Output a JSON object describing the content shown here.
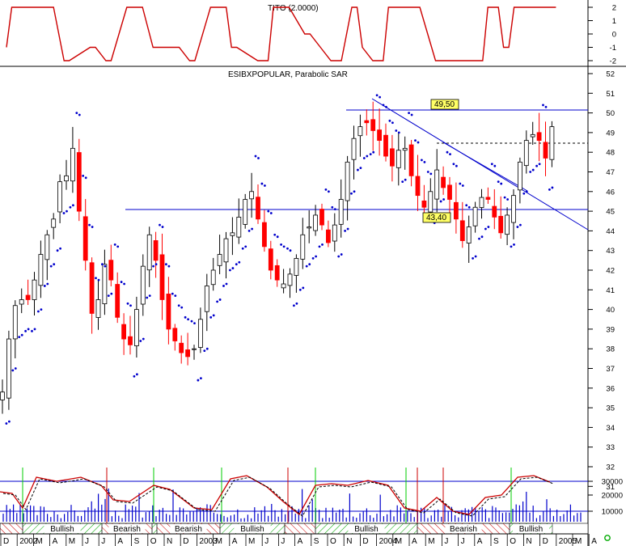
{
  "colors": {
    "up": "#000000",
    "down": "#ff0000",
    "sar": "#0000cc",
    "indicator": "#cc0000",
    "line": "#0000cc",
    "volume": "#0000cc",
    "signal": "#00cc00",
    "band_bull": "#00aa00",
    "band_bear": "#cc0000"
  },
  "chart_data": [
    {
      "type": "line",
      "title": "TITO (2.0000)",
      "ylim": [
        -2,
        2
      ],
      "yticks": [
        "2",
        "1",
        "0",
        "-1",
        "-2"
      ],
      "series": [
        {
          "x": [
            0,
            1,
            3,
            6,
            9,
            11,
            12,
            16,
            17,
            19,
            20,
            23,
            26,
            28,
            29,
            33,
            35,
            36,
            39,
            42,
            43,
            44,
            48,
            50,
            51,
            54,
            57,
            58,
            60,
            62,
            64,
            66,
            67,
            68,
            70,
            72,
            73,
            76,
            79,
            82,
            83,
            86,
            89,
            91,
            92,
            93,
            94,
            95,
            96,
            97,
            100,
            101,
            105
          ],
          "y": [
            -1,
            2,
            2,
            2,
            2,
            -2,
            -2,
            -1,
            -1,
            -2,
            -2,
            2,
            2,
            -1,
            -1,
            -1,
            -2,
            -2,
            2,
            2,
            -1,
            -1,
            -2,
            -2,
            2,
            2,
            0,
            0,
            -1,
            -2,
            -2,
            2,
            2,
            -1,
            -2,
            -2,
            2,
            2,
            2,
            -2,
            -2,
            -2,
            -2,
            -2,
            2,
            2,
            2,
            -1,
            -1,
            2,
            2,
            2,
            2
          ]
        }
      ]
    },
    {
      "type": "candlestick",
      "title": "ESIBXPOPULAR, Parabolic SAR",
      "ylim": [
        31,
        52
      ],
      "yticks": [
        "52",
        "51",
        "50",
        "49",
        "48",
        "47",
        "46",
        "45",
        "44",
        "43",
        "42",
        "41",
        "40",
        "39",
        "38",
        "37",
        "36",
        "35",
        "34",
        "33",
        "32",
        "31"
      ],
      "resistance": 49.5,
      "resistance_label": "49,50",
      "support": 43.4,
      "support_label": "43,40",
      "reference": 47.4,
      "close": [
        35.8,
        38.5,
        40.2,
        40.5,
        40.5,
        41.5,
        42.8,
        43.8,
        44.6,
        46.5,
        46.8,
        48.2,
        45.0,
        42.5,
        39.8,
        40.5,
        42.3,
        41.5,
        39.6,
        38.5,
        38.2,
        40.0,
        42.2,
        43.8,
        42.5,
        40.5,
        39.0,
        38.4,
        37.8,
        37.6,
        38.0,
        39.5,
        41.2,
        42.0,
        42.8,
        43.6,
        43.9,
        44.7,
        45.6,
        46.0,
        44.6,
        43.2,
        42.0,
        41.5,
        41.3,
        41.8,
        42.6,
        43.8,
        44.2,
        44.8,
        44.3,
        43.4,
        44.3,
        45.6,
        47.5,
        48.7,
        49.3,
        49.5,
        49.1,
        48.6,
        47.8,
        47.3,
        48.1,
        48.2,
        46.8,
        45.8,
        45.2,
        46.0,
        47.1,
        46.2,
        45.6,
        44.6,
        43.5,
        44.2,
        45.2,
        45.7,
        45.6,
        44.7,
        43.9,
        44.8,
        45.8,
        47.5,
        48.6,
        48.9,
        48.6,
        47.7,
        49.3
      ]
    },
    {
      "type": "line",
      "ylabel": "",
      "yticks": [
        "30000",
        "20000",
        "10000"
      ],
      "bands": [
        {
          "label": "Bullish",
          "start": 3,
          "end": 31
        },
        {
          "label": "Bearish",
          "start": 31,
          "end": 47
        },
        {
          "label": "Bearish",
          "start": 54,
          "end": 70
        },
        {
          "label": "Bullish",
          "start": 70,
          "end": 97
        },
        {
          "label": "Bullish",
          "start": 146,
          "end": 213
        },
        {
          "label": "Bearish",
          "start": 244,
          "end": 304
        },
        {
          "label": "Bullish",
          "start": 304,
          "end": 314
        }
      ]
    }
  ],
  "months": [
    "D",
    "2002",
    "M",
    "A",
    "M",
    "J",
    "J",
    "A",
    "S",
    "O",
    "N",
    "D",
    "2003",
    "M",
    "A",
    "M",
    "J",
    "J",
    "A",
    "S",
    "O",
    "N",
    "D",
    "2004",
    "M",
    "A",
    "M",
    "J",
    "J",
    "A",
    "S",
    "O",
    "N",
    "D",
    "2005",
    "M",
    "A"
  ]
}
